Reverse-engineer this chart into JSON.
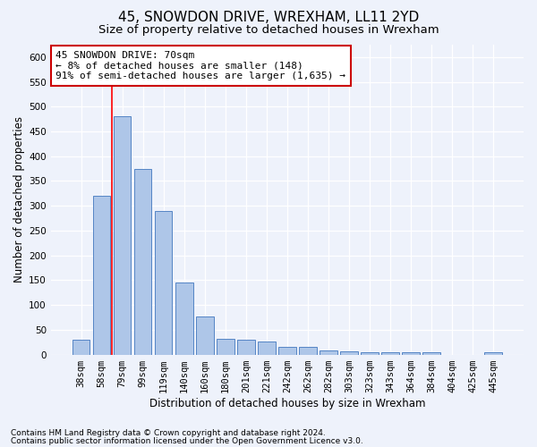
{
  "title": "45, SNOWDON DRIVE, WREXHAM, LL11 2YD",
  "subtitle": "Size of property relative to detached houses in Wrexham",
  "xlabel": "Distribution of detached houses by size in Wrexham",
  "ylabel": "Number of detached properties",
  "categories": [
    "38sqm",
    "58sqm",
    "79sqm",
    "99sqm",
    "119sqm",
    "140sqm",
    "160sqm",
    "180sqm",
    "201sqm",
    "221sqm",
    "242sqm",
    "262sqm",
    "282sqm",
    "303sqm",
    "323sqm",
    "343sqm",
    "364sqm",
    "384sqm",
    "404sqm",
    "425sqm",
    "445sqm"
  ],
  "values": [
    30,
    320,
    480,
    375,
    290,
    145,
    77,
    32,
    30,
    27,
    16,
    16,
    9,
    7,
    5,
    5,
    5,
    5,
    0,
    0,
    5
  ],
  "bar_color": "#aec6e8",
  "bar_edge_color": "#5585c5",
  "annotation_title": "45 SNOWDON DRIVE: 70sqm",
  "annotation_line1": "← 8% of detached houses are smaller (148)",
  "annotation_line2": "91% of semi-detached houses are larger (1,635) →",
  "annotation_box_color": "#ffffff",
  "annotation_border_color": "#cc0000",
  "ylim": [
    0,
    625
  ],
  "yticks": [
    0,
    50,
    100,
    150,
    200,
    250,
    300,
    350,
    400,
    450,
    500,
    550,
    600
  ],
  "footnote1": "Contains HM Land Registry data © Crown copyright and database right 2024.",
  "footnote2": "Contains public sector information licensed under the Open Government Licence v3.0.",
  "bg_color": "#eef2fb",
  "grid_color": "#ffffff",
  "title_fontsize": 11,
  "subtitle_fontsize": 9.5,
  "axis_label_fontsize": 8.5,
  "tick_fontsize": 7.5,
  "annotation_fontsize": 8,
  "footnote_fontsize": 6.5
}
